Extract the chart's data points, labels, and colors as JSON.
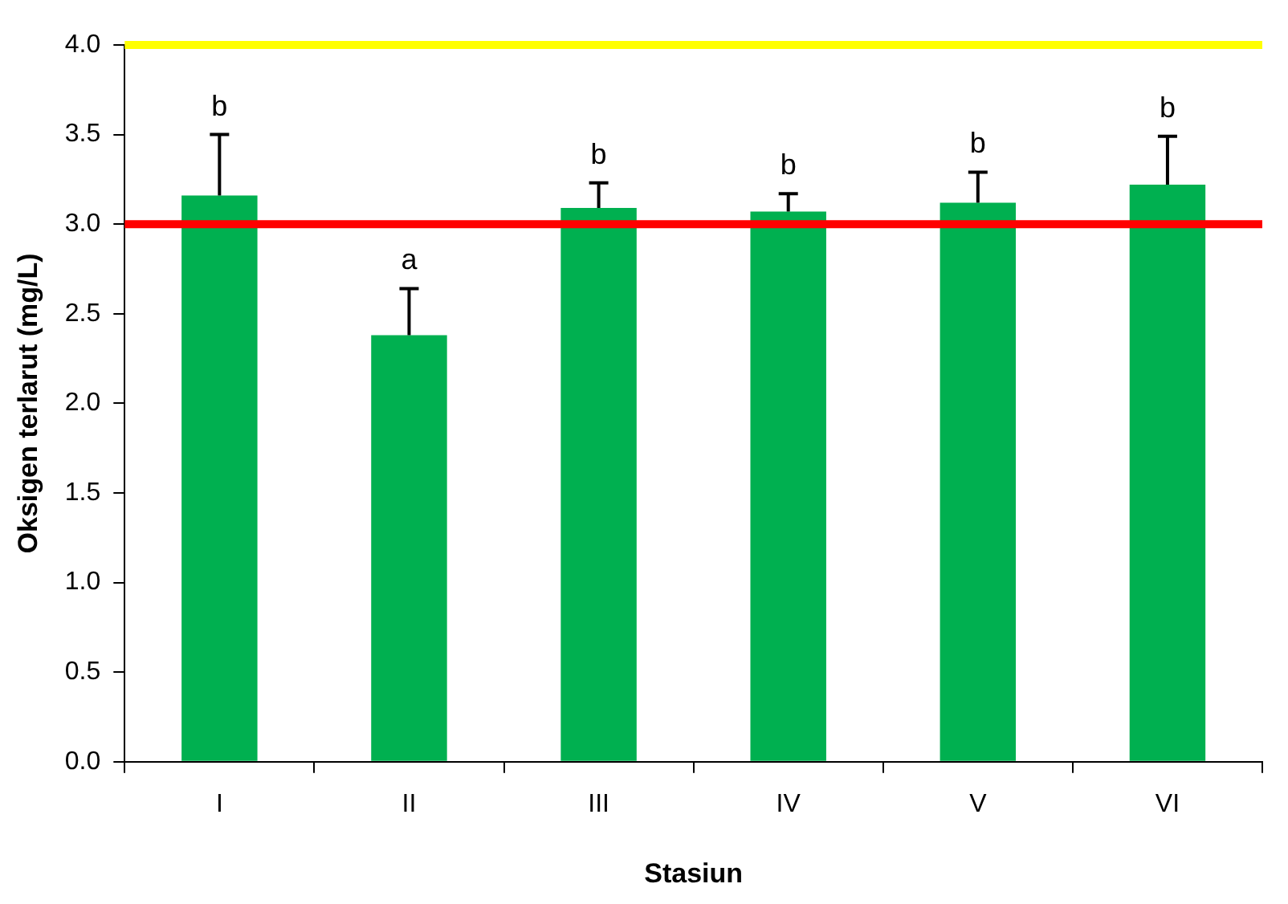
{
  "chart_data": {
    "type": "bar",
    "xlabel": "Stasiun",
    "ylabel": "Oksigen terlarut (mg/L)",
    "categories": [
      "I",
      "II",
      "III",
      "IV",
      "V",
      "VI"
    ],
    "values": [
      3.16,
      2.38,
      3.09,
      3.07,
      3.12,
      3.22
    ],
    "color": "#00b050",
    "errors": [
      [
        3.16,
        3.5
      ],
      [
        2.38,
        2.64
      ],
      [
        3.09,
        3.23
      ],
      [
        3.07,
        3.17
      ],
      [
        3.12,
        3.29
      ],
      [
        3.22,
        3.49
      ]
    ],
    "ylim": [
      0,
      4
    ],
    "yticks": [
      {
        "value": 0,
        "label": "0.0"
      },
      {
        "value": 0.5,
        "label": "0.5"
      },
      {
        "value": 1,
        "label": "1.0"
      },
      {
        "value": 1.5,
        "label": "1.5"
      },
      {
        "value": 2,
        "label": "2.0"
      },
      {
        "value": 2.5,
        "label": "2.5"
      },
      {
        "value": 3,
        "label": "3.0"
      },
      {
        "value": 3.5,
        "label": "3.5"
      },
      {
        "value": 4,
        "label": "4.0"
      }
    ],
    "grid": false,
    "legend": false,
    "ref_lines": [
      {
        "axis": "y",
        "value": 4,
        "color": "#ffff00"
      },
      {
        "axis": "y",
        "value": 3,
        "color": "#ff0000"
      }
    ],
    "annotations": [
      {
        "text": "b",
        "x": "I",
        "y": 3.5
      },
      {
        "text": "a",
        "x": "II",
        "y": 2.64
      },
      {
        "text": "b",
        "x": "III",
        "y": 3.23
      },
      {
        "text": "b",
        "x": "IV",
        "y": 3.17
      },
      {
        "text": "b",
        "x": "V",
        "y": 3.29
      },
      {
        "text": "b",
        "x": "VI",
        "y": 3.49
      }
    ]
  }
}
